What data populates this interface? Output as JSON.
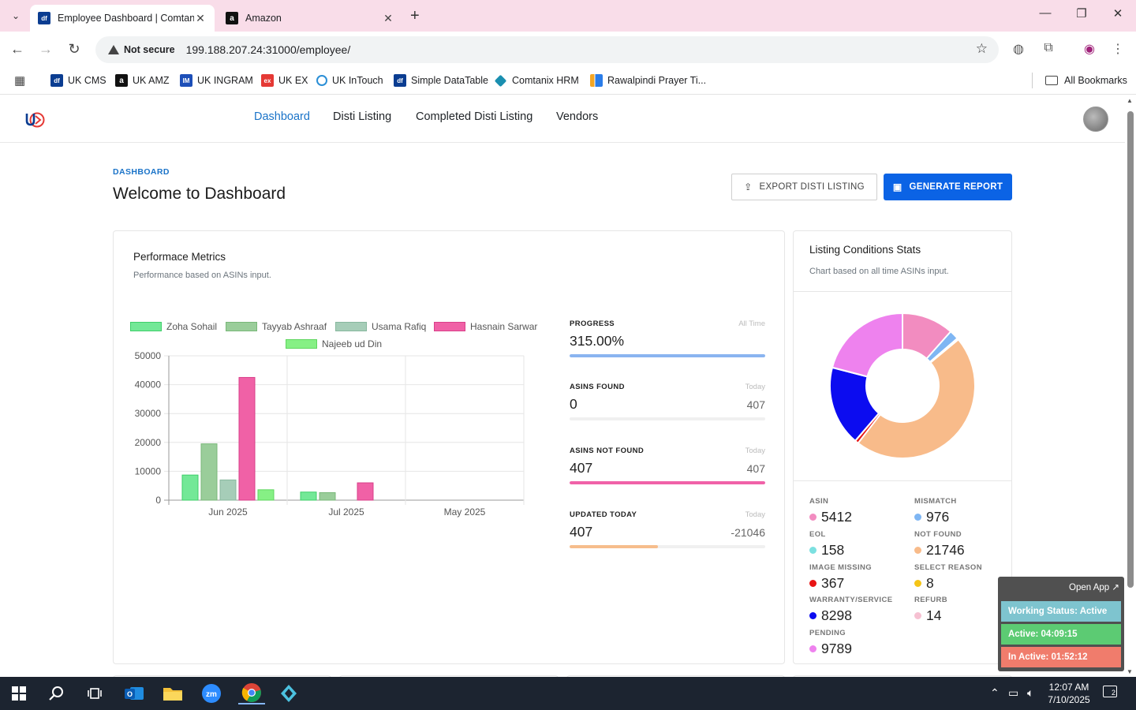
{
  "browser": {
    "tabs": [
      {
        "title": "Employee Dashboard | Comtan",
        "favicon": "df"
      },
      {
        "title": "Amazon",
        "favicon": "a"
      }
    ],
    "security": "Not secure",
    "url": "199.188.207.24:31000/employee/",
    "bookmarks": [
      {
        "label": "UK CMS",
        "icon": "df"
      },
      {
        "label": "UK AMZ",
        "icon": "a"
      },
      {
        "label": "UK INGRAM",
        "icon": "IM"
      },
      {
        "label": "UK EX",
        "icon": "ex"
      },
      {
        "label": "UK InTouch",
        "icon": "c"
      },
      {
        "label": "Simple DataTable",
        "icon": "df"
      },
      {
        "label": "Comtanix HRM",
        "icon": "hex"
      },
      {
        "label": "Rawalpindi Prayer Ti...",
        "icon": "bars"
      }
    ],
    "all_bookmarks": "All Bookmarks"
  },
  "nav": {
    "links": [
      "Dashboard",
      "Disti Listing",
      "Completed Disti Listing",
      "Vendors"
    ]
  },
  "page": {
    "breadcrumb": "DASHBOARD",
    "title": "Welcome to Dashboard",
    "export_button": "EXPORT DISTI LISTING",
    "generate_button": "GENERATE REPORT"
  },
  "performance": {
    "title": "Performace Metrics",
    "subtitle": "Performance based on ASINs input.",
    "metrics": [
      {
        "label": "PROGRESS",
        "period": "All Time",
        "value": "315.00%",
        "right": "",
        "fill_fraction": 1.0,
        "color": "#8ab4f0"
      },
      {
        "label": "ASINS FOUND",
        "period": "Today",
        "value": "0",
        "right": "407",
        "fill_fraction": 0.0,
        "color": "#8ab4f0"
      },
      {
        "label": "ASINS NOT FOUND",
        "period": "Today",
        "value": "407",
        "right": "407",
        "fill_fraction": 1.0,
        "color": "#f062a8"
      },
      {
        "label": "UPDATED TODAY",
        "period": "Today",
        "value": "407",
        "right": "-21046",
        "fill_fraction": 0.45,
        "color": "#f6bd8c"
      }
    ]
  },
  "chart_data": [
    {
      "type": "bar",
      "categories": [
        "Jun 2025",
        "Jul 2025",
        "May 2025"
      ],
      "series": [
        {
          "name": "Zoha Sohail",
          "values": [
            8700,
            2800,
            0
          ],
          "color": "#73e897",
          "border": "#3fcf6a"
        },
        {
          "name": "Tayyab Ashraaf",
          "values": [
            19500,
            2600,
            0
          ],
          "color": "#9acd9a",
          "border": "#79b879"
        },
        {
          "name": "Usama Rafiq",
          "values": [
            7000,
            0,
            0
          ],
          "color": "#a6cdb8",
          "border": "#88b89e"
        },
        {
          "name": "Hasnain Sarwar",
          "values": [
            42500,
            6000,
            0
          ],
          "color": "#f061a6",
          "border": "#d9408a"
        },
        {
          "name": "Najeeb ud Din",
          "values": [
            3600,
            0,
            0
          ],
          "color": "#86f085",
          "border": "#5fd65f"
        }
      ],
      "yticks": [
        "50000",
        "40000",
        "30000",
        "20000",
        "10000",
        "0"
      ],
      "ylim": [
        0,
        50000
      ]
    },
    {
      "type": "pie",
      "categories": [
        "ASIN",
        "MISMATCH",
        "EOL",
        "NOT FOUND",
        "IMAGE MISSING",
        "SELECT REASON",
        "WARRANTY/SERVICE",
        "REFURB",
        "PENDING"
      ],
      "values": [
        5412,
        976,
        158,
        21746,
        367,
        8,
        8298,
        14,
        9789
      ],
      "colors": [
        "#f28cc0",
        "#7fb6f3",
        "#7ce0e0",
        "#f8bb8a",
        "#e81414",
        "#f5c518",
        "#0c0cf0",
        "#f6c1d2",
        "#ee82ee"
      ]
    }
  ],
  "stats": {
    "title": "Listing Conditions Stats",
    "subtitle": "Chart based on all time ASINs input.",
    "items": [
      {
        "label": "ASIN",
        "value": "5412",
        "color": "#f28cc0"
      },
      {
        "label": "MISMATCH",
        "value": "976",
        "color": "#7fb6f3"
      },
      {
        "label": "EOL",
        "value": "158",
        "color": "#7ce0e0"
      },
      {
        "label": "NOT FOUND",
        "value": "21746",
        "color": "#f8bb8a"
      },
      {
        "label": "IMAGE MISSING",
        "value": "367",
        "color": "#e81414"
      },
      {
        "label": "SELECT REASON",
        "value": "8",
        "color": "#f5c518"
      },
      {
        "label": "WARRANTY/SERVICE",
        "value": "8298",
        "color": "#0c0cf0"
      },
      {
        "label": "REFURB",
        "value": "14",
        "color": "#f6c1d2"
      },
      {
        "label": "PENDING",
        "value": "9789",
        "color": "#ee82ee"
      }
    ]
  },
  "widget": {
    "open_app": "Open App ↗",
    "working_status": "Working Status: Active",
    "active": "Active: 04:09:15",
    "inactive": "In Active: 01:52:12"
  },
  "taskbar": {
    "time": "12:07 AM",
    "date": "7/10/2025",
    "notifications": "2"
  }
}
